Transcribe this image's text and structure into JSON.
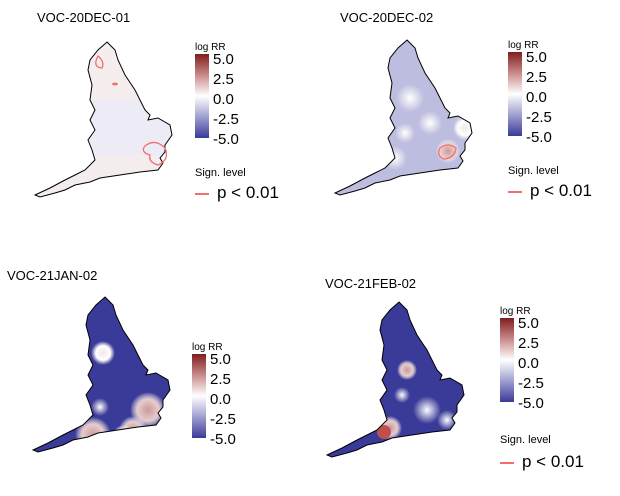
{
  "legend": {
    "title": "log RR",
    "ticks": [
      "5.0",
      "2.5",
      "0.0",
      "-2.5",
      "-5.0"
    ],
    "sign_title": "Sign. level",
    "sign_value": "p < 0.01"
  },
  "colors": {
    "high": "#7f1d1d",
    "mid": "#ffffff",
    "low": "#3a3a98",
    "significance": "#f07070"
  },
  "panels": [
    {
      "title": "VOC-20DEC-01",
      "state": "near-zero",
      "has_sign_legend": true
    },
    {
      "title": "VOC-20DEC-02",
      "state": "mild-negative",
      "has_sign_legend": true
    },
    {
      "title": "VOC-21JAN-02",
      "state": "strong-negative",
      "has_sign_legend": false
    },
    {
      "title": "VOC-21FEB-02",
      "state": "strong-negative",
      "has_sign_legend": true
    }
  ]
}
